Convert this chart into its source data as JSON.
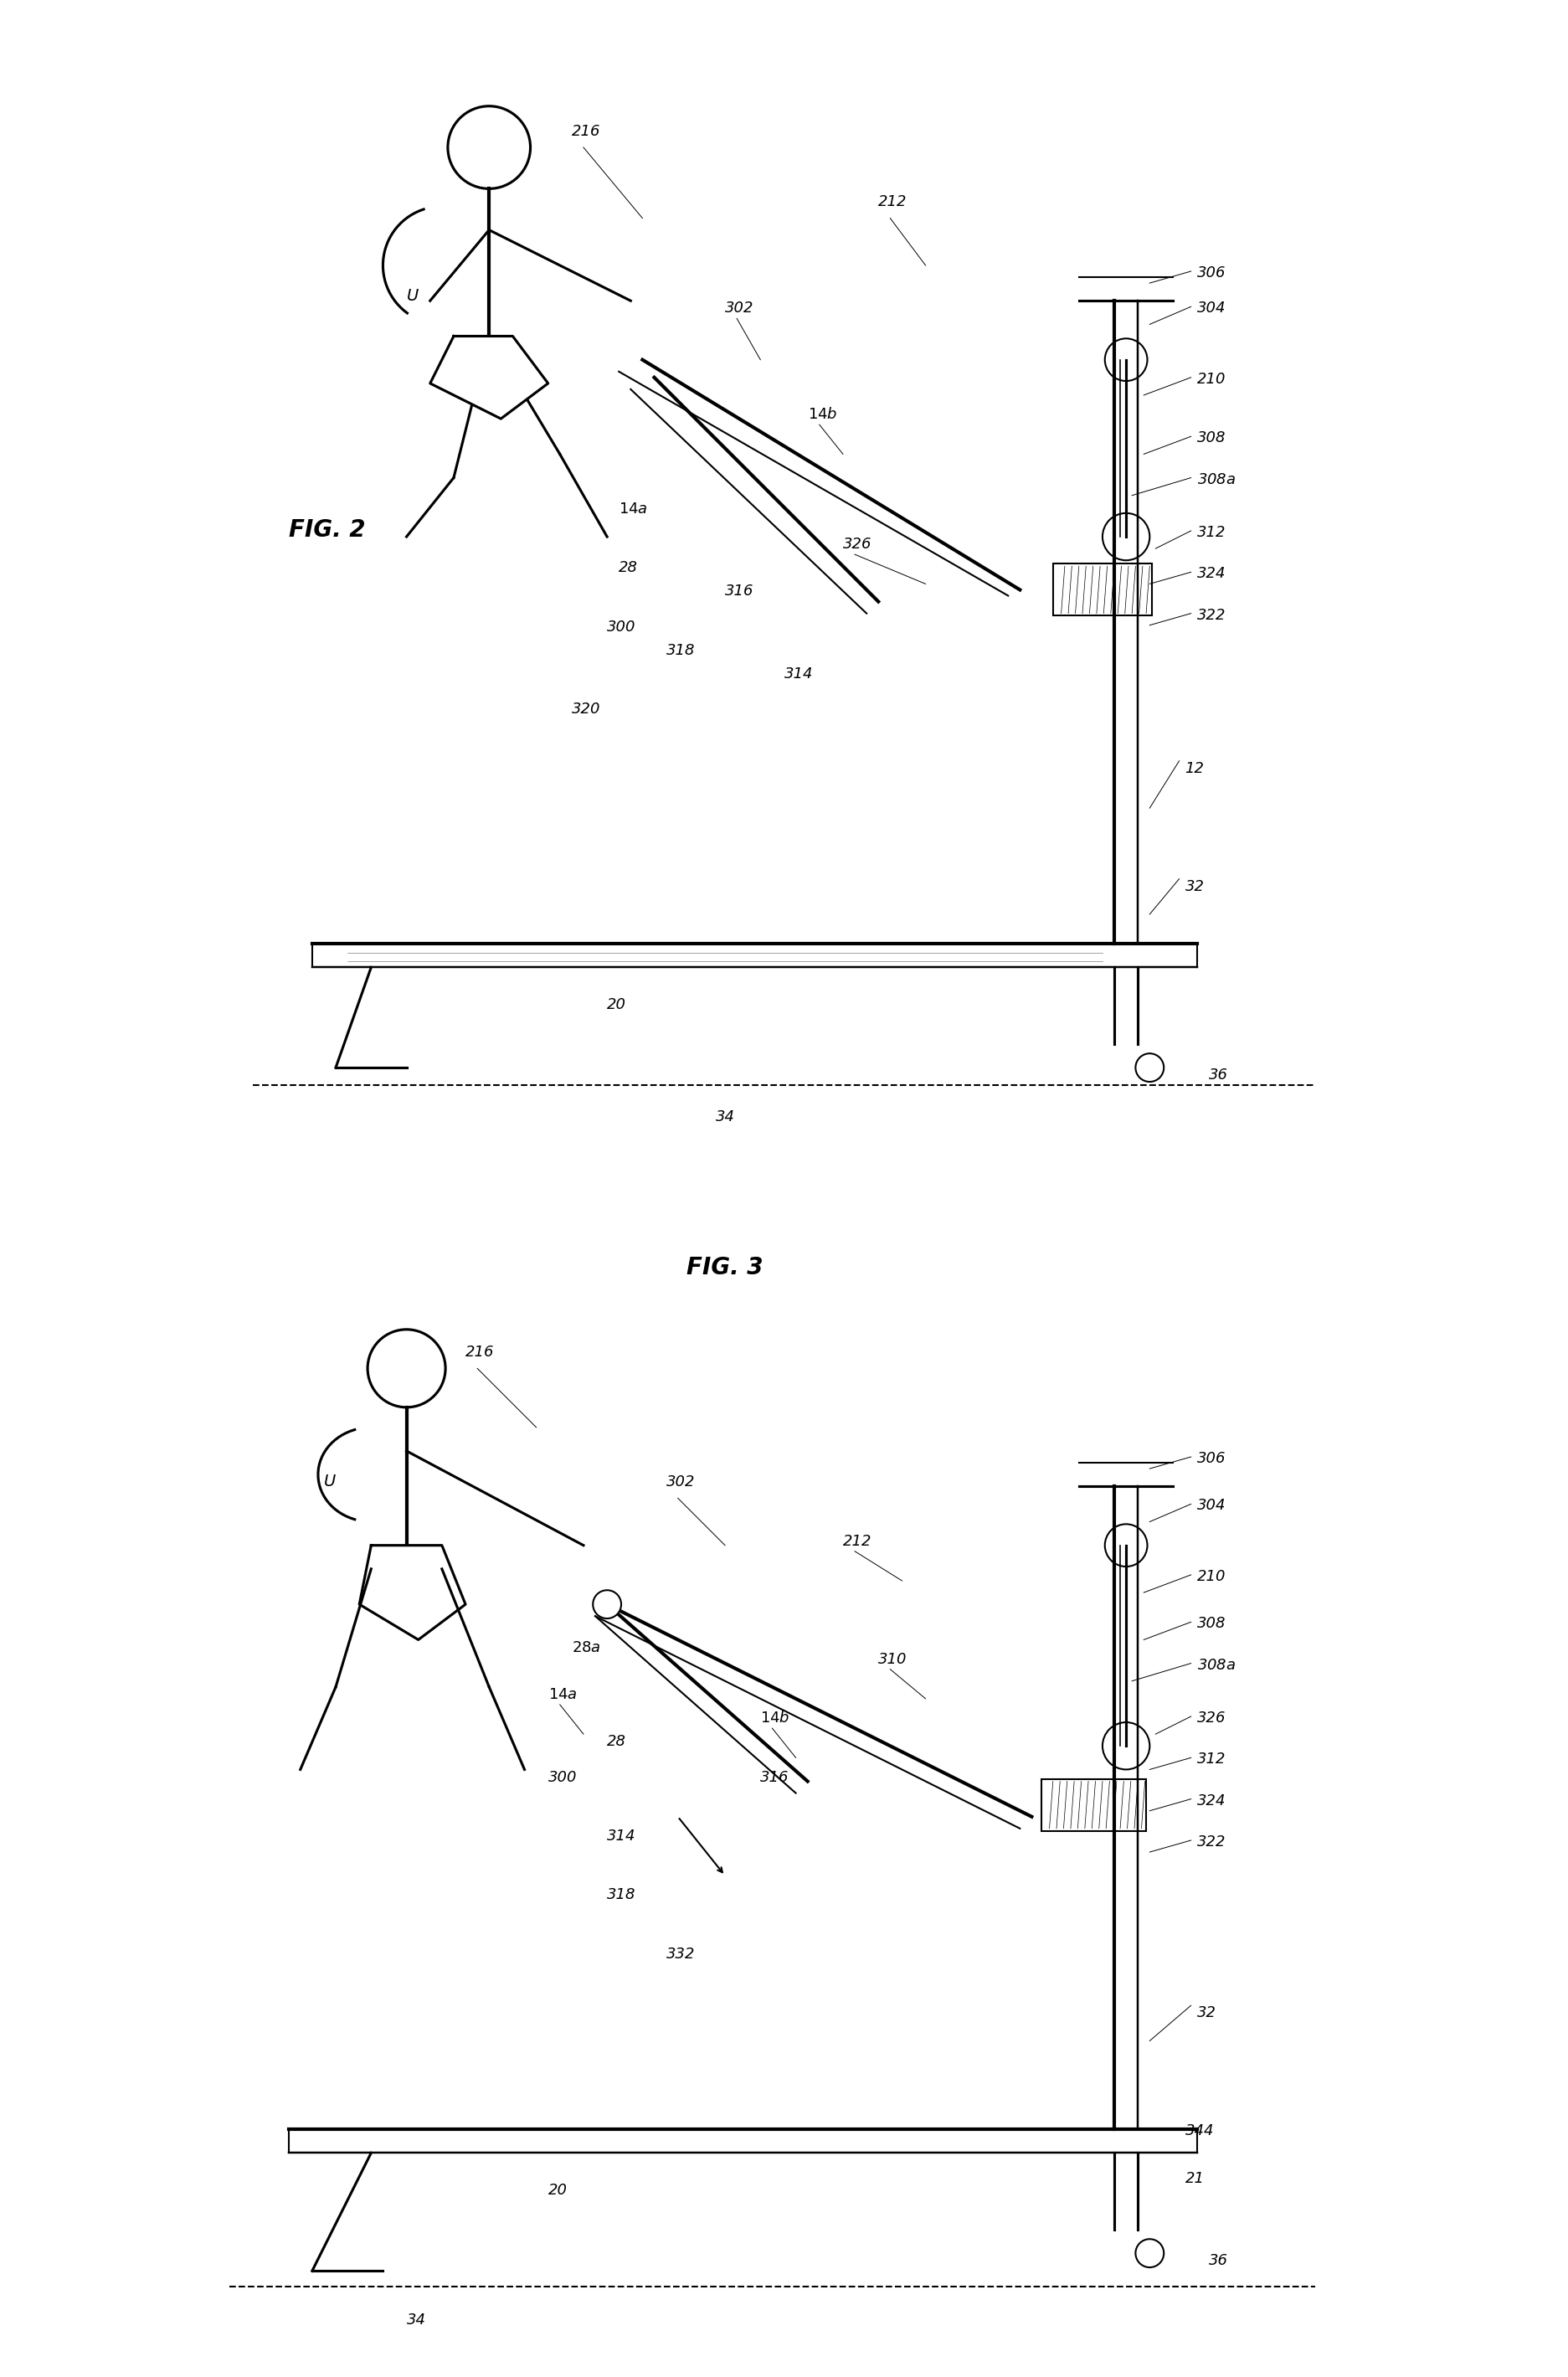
{
  "fig_width": 18.73,
  "fig_height": 28.39,
  "background_color": "#ffffff",
  "line_color": "#000000",
  "line_width": 1.5,
  "fig2_title": "FIG. 2",
  "fig3_title": "FIG. 3",
  "label_fontsize": 13,
  "title_fontsize": 20,
  "annotation_fontsize": 12
}
